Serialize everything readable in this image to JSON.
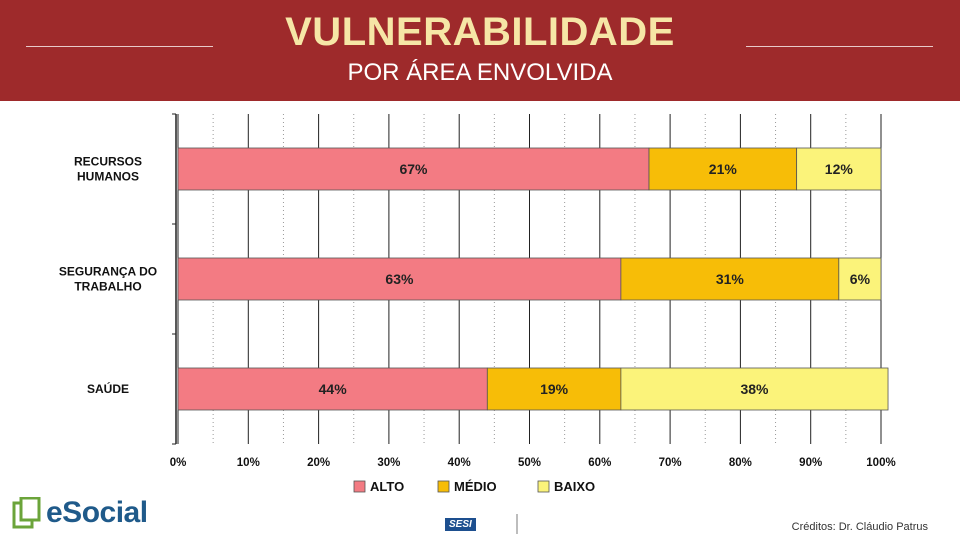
{
  "header": {
    "title": "VULNERABILIDADE",
    "subtitle": "POR ÁREA ENVOLVIDA"
  },
  "chart_data": {
    "type": "bar",
    "orientation": "horizontal",
    "stacked": true,
    "categories": [
      "RECURSOS HUMANOS",
      "SEGURANÇA DO TRABALHO",
      "SAÚDE"
    ],
    "series": [
      {
        "name": "ALTO",
        "values": [
          67,
          63,
          44
        ],
        "labels": [
          "67%",
          "63%",
          "44%"
        ],
        "color": "#f37b83"
      },
      {
        "name": "MÉDIO",
        "values": [
          21,
          31,
          19
        ],
        "labels": [
          "21%",
          "31%",
          "19%"
        ],
        "color": "#f7bd07"
      },
      {
        "name": "BAIXO",
        "values": [
          12,
          6,
          38
        ],
        "labels": [
          "12%",
          "6%",
          "38%"
        ],
        "color": "#fbf37a"
      }
    ],
    "xlim": [
      0,
      100
    ],
    "xticks": [
      "0%",
      "10%",
      "20%",
      "30%",
      "40%",
      "50%",
      "60%",
      "70%",
      "80%",
      "90%",
      "100%"
    ],
    "grid": true,
    "legend_position": "bottom"
  },
  "footer": {
    "esocial_logo_text": "eSocial",
    "sesi_logo_text": "SESI",
    "credits": "Créditos: Dr. Cláudio Patrus"
  },
  "colors": {
    "banner": "#9e2a2b",
    "title": "#f6e6a6"
  },
  "icons": [
    "esocial-document-icon"
  ]
}
